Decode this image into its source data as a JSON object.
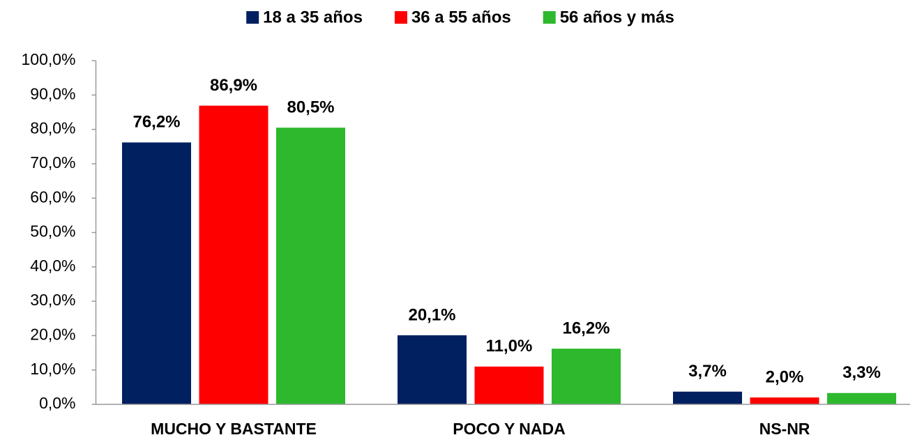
{
  "chart_data": {
    "type": "bar",
    "categories": [
      "MUCHO Y BASTANTE",
      "POCO Y NADA",
      "NS-NR"
    ],
    "series": [
      {
        "name": "18 a 35 años",
        "color": "#002060",
        "values": [
          76.2,
          20.1,
          3.7
        ],
        "value_labels": [
          "76,2%",
          "20,1%",
          "3,7%"
        ]
      },
      {
        "name": "36 a 55 años",
        "color": "#ff0000",
        "values": [
          86.9,
          11.0,
          2.0
        ],
        "value_labels": [
          "86,9%",
          "11,0%",
          "2,0%"
        ]
      },
      {
        "name": "56 años y más",
        "color": "#2db82d",
        "values": [
          80.5,
          16.2,
          3.3
        ],
        "value_labels": [
          "80,5%",
          "16,2%",
          "3,3%"
        ]
      }
    ],
    "ylim": [
      0,
      100
    ],
    "yticks": [
      {
        "value": 0,
        "label": "0,0%"
      },
      {
        "value": 10,
        "label": "10,0%"
      },
      {
        "value": 20,
        "label": "20,0%"
      },
      {
        "value": 30,
        "label": "30,0%"
      },
      {
        "value": 40,
        "label": "40,0%"
      },
      {
        "value": 50,
        "label": "50,0%"
      },
      {
        "value": 60,
        "label": "60,0%"
      },
      {
        "value": 70,
        "label": "70,0%"
      },
      {
        "value": 80,
        "label": "80,0%"
      },
      {
        "value": 90,
        "label": "90,0%"
      },
      {
        "value": 100,
        "label": "100,0%"
      }
    ],
    "legend": "top"
  }
}
